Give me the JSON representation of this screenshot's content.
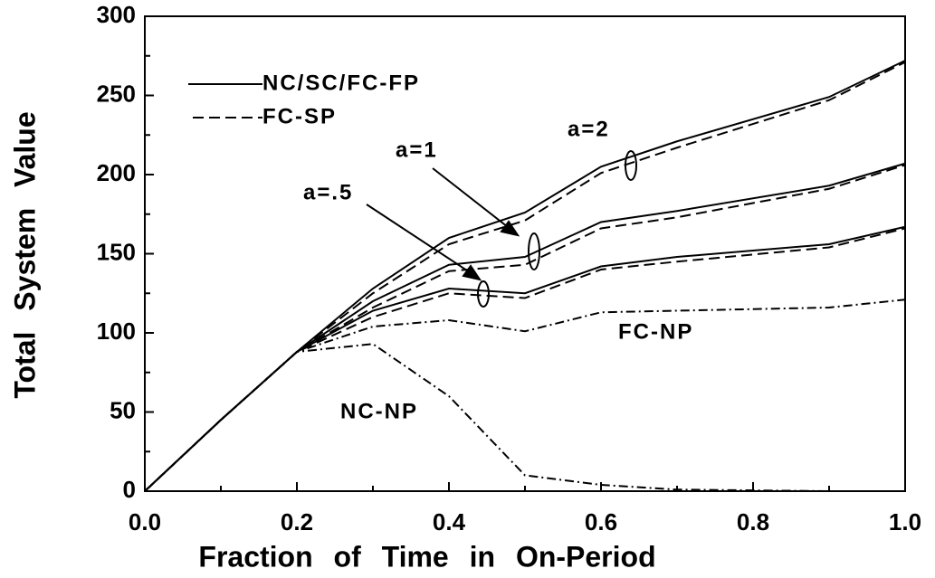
{
  "chart_data": {
    "type": "line",
    "xlabel": "Fraction of Time in On-Period",
    "ylabel": "Total System Value",
    "x": [
      0,
      0.1,
      0.2,
      0.3,
      0.4,
      0.5,
      0.6,
      0.7,
      0.9,
      1.0
    ],
    "series": [
      {
        "dash": "solid",
        "color": "#000000",
        "values": [
          0,
          45,
          88,
          128,
          160,
          176,
          205,
          221,
          249,
          272
        ]
      },
      {
        "dash": "dashed",
        "color": "#000000",
        "values": [
          0,
          45,
          88,
          125,
          156,
          171,
          201,
          217,
          247,
          271
        ]
      },
      {
        "dash": "solid",
        "color": "#000000",
        "values": [
          0,
          45,
          88,
          120,
          143,
          148,
          170,
          177,
          193,
          207
        ]
      },
      {
        "dash": "dashed",
        "color": "#000000",
        "values": [
          0,
          45,
          88,
          116,
          139,
          143,
          166,
          173,
          191,
          206
        ]
      },
      {
        "dash": "solid",
        "color": "#000000",
        "values": [
          0,
          45,
          88,
          114,
          128,
          125,
          142,
          148,
          156,
          167
        ]
      },
      {
        "dash": "dashed",
        "color": "#000000",
        "values": [
          0,
          45,
          88,
          110,
          125,
          122,
          140,
          145,
          154,
          166
        ]
      },
      {
        "dash": "dashdot",
        "color": "#000000",
        "values": [
          0,
          45,
          88,
          104,
          108,
          101,
          113,
          114,
          116,
          121
        ]
      },
      {
        "dash": "dashdot",
        "color": "#000000",
        "values": [
          0,
          45,
          88,
          93,
          60,
          10,
          4,
          1,
          0,
          0
        ]
      }
    ],
    "legend": [
      {
        "label": "NC/SC/FC-FP",
        "dash": "solid"
      },
      {
        "label": "FC-SP",
        "dash": "dashed"
      }
    ],
    "annotations": [
      "a=2",
      "a=1",
      "a=.5",
      "FC-NP",
      "NC-NP"
    ],
    "xlim": [
      0,
      1.0
    ],
    "ylim": [
      0,
      300
    ],
    "xticks": [
      {
        "value": 0,
        "label": "0.0"
      },
      0.2,
      0.4,
      0.6,
      0.8,
      {
        "value": 1.0,
        "label": "1.0"
      }
    ],
    "xminorticks": [
      0.1,
      0.3,
      0.5,
      0.7,
      0.9
    ],
    "yticks": [
      0,
      50,
      100,
      150,
      200,
      250,
      300
    ],
    "yminorticks": [
      25,
      75,
      125,
      175,
      225,
      275
    ],
    "grid": false
  }
}
